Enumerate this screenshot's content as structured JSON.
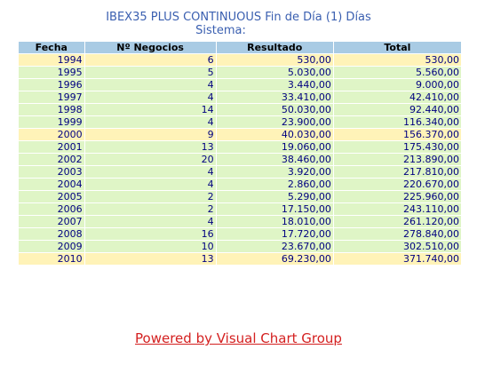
{
  "header": {
    "title": "IBEX35 PLUS CONTINUOUS Fin de Día (1) Días",
    "subtitle": "Sistema:"
  },
  "table": {
    "columns": [
      "Fecha",
      "Nº Negocios",
      "Resultado",
      "Total"
    ],
    "rows": [
      {
        "fecha": "1994",
        "negocios": "6",
        "resultado": "530,00",
        "total": "530,00",
        "highlight": true
      },
      {
        "fecha": "1995",
        "negocios": "5",
        "resultado": "5.030,00",
        "total": "5.560,00",
        "highlight": false
      },
      {
        "fecha": "1996",
        "negocios": "4",
        "resultado": "3.440,00",
        "total": "9.000,00",
        "highlight": false
      },
      {
        "fecha": "1997",
        "negocios": "4",
        "resultado": "33.410,00",
        "total": "42.410,00",
        "highlight": false
      },
      {
        "fecha": "1998",
        "negocios": "14",
        "resultado": "50.030,00",
        "total": "92.440,00",
        "highlight": false
      },
      {
        "fecha": "1999",
        "negocios": "4",
        "resultado": "23.900,00",
        "total": "116.340,00",
        "highlight": false
      },
      {
        "fecha": "2000",
        "negocios": "9",
        "resultado": "40.030,00",
        "total": "156.370,00",
        "highlight": true
      },
      {
        "fecha": "2001",
        "negocios": "13",
        "resultado": "19.060,00",
        "total": "175.430,00",
        "highlight": false
      },
      {
        "fecha": "2002",
        "negocios": "20",
        "resultado": "38.460,00",
        "total": "213.890,00",
        "highlight": false
      },
      {
        "fecha": "2003",
        "negocios": "4",
        "resultado": "3.920,00",
        "total": "217.810,00",
        "highlight": false
      },
      {
        "fecha": "2004",
        "negocios": "4",
        "resultado": "2.860,00",
        "total": "220.670,00",
        "highlight": false
      },
      {
        "fecha": "2005",
        "negocios": "2",
        "resultado": "5.290,00",
        "total": "225.960,00",
        "highlight": false
      },
      {
        "fecha": "2006",
        "negocios": "2",
        "resultado": "17.150,00",
        "total": "243.110,00",
        "highlight": false
      },
      {
        "fecha": "2007",
        "negocios": "4",
        "resultado": "18.010,00",
        "total": "261.120,00",
        "highlight": false
      },
      {
        "fecha": "2008",
        "negocios": "16",
        "resultado": "17.720,00",
        "total": "278.840,00",
        "highlight": false
      },
      {
        "fecha": "2009",
        "negocios": "10",
        "resultado": "23.670,00",
        "total": "302.510,00",
        "highlight": false
      },
      {
        "fecha": "2010",
        "negocios": "13",
        "resultado": "69.230,00",
        "total": "371.740,00",
        "highlight": true
      }
    ]
  },
  "footer": {
    "link_text": "Powered by Visual Chart Group"
  },
  "colors": {
    "header_text": "#3a5fb0",
    "header_bg": "#a9cbe4",
    "row_normal": "#dff5c6",
    "row_highlight": "#fff3b8",
    "cell_text": "#000080",
    "link": "#d42020"
  }
}
